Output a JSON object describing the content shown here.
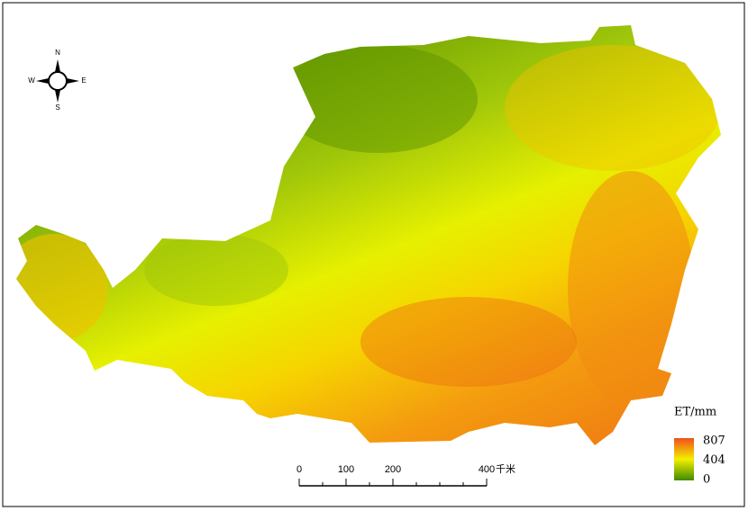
{
  "compass": {
    "north": "N",
    "south": "S",
    "west": "W",
    "east": "E"
  },
  "legend": {
    "title": "ET/mm",
    "max": 807,
    "mid": 404,
    "min": 0
  },
  "scale_bar": {
    "ticks": [
      0,
      100,
      200,
      400
    ],
    "unit": "千米"
  }
}
